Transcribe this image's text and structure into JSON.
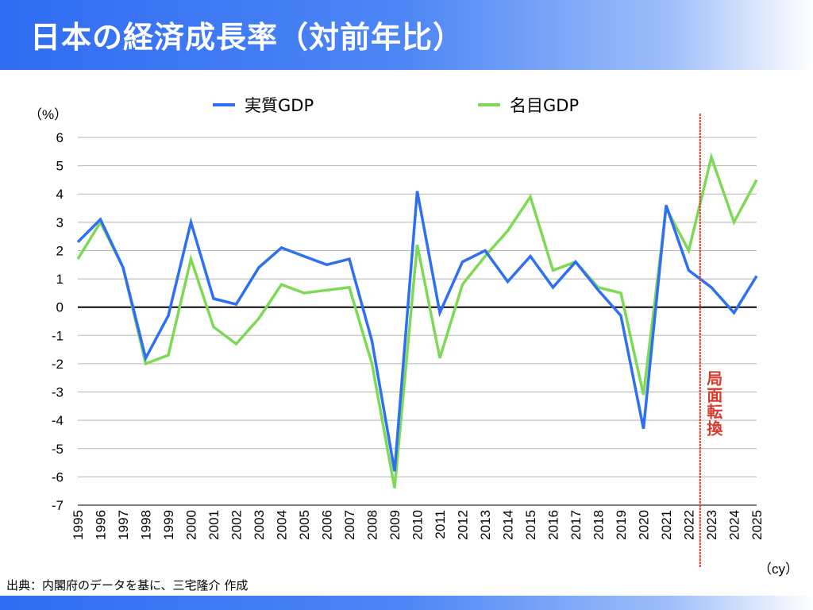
{
  "header": {
    "title": "日本の経済成長率（対前年比）"
  },
  "source": "出典：内閣府のデータを基に、三宅隆介 作成",
  "colors": {
    "real": "#2f6ff2",
    "nominal": "#7ed957",
    "marker": "#d93a2b"
  },
  "chart_data": {
    "type": "line",
    "title": "日本の経済成長率（対前年比）",
    "ylabel": "（%）",
    "xlabel": "（cy）",
    "ylim": [
      -7,
      6
    ],
    "yticks": [
      6,
      5,
      4,
      3,
      2,
      1,
      0,
      -1,
      -2,
      -3,
      -4,
      -5,
      -6,
      -7
    ],
    "grid": true,
    "legend": "top",
    "x": [
      1995,
      1996,
      1997,
      1998,
      1999,
      2000,
      2001,
      2002,
      2003,
      2004,
      2005,
      2006,
      2007,
      2008,
      2009,
      2010,
      2011,
      2012,
      2013,
      2014,
      2015,
      2016,
      2017,
      2018,
      2019,
      2020,
      2021,
      2022,
      2023,
      2024,
      2025
    ],
    "series": [
      {
        "name": "実質GDP",
        "values": [
          2.3,
          3.1,
          1.4,
          -1.8,
          -0.3,
          3.0,
          0.3,
          0.1,
          1.4,
          2.1,
          1.8,
          1.5,
          1.7,
          -1.2,
          -5.8,
          4.1,
          -0.2,
          1.6,
          2.0,
          0.9,
          1.8,
          0.7,
          1.6,
          0.6,
          -0.3,
          -4.3,
          3.6,
          1.3,
          0.7,
          -0.2,
          1.1
        ]
      },
      {
        "name": "名目GDP",
        "values": [
          1.7,
          3.0,
          1.4,
          -2.0,
          -1.7,
          1.7,
          -0.7,
          -1.3,
          -0.4,
          0.8,
          0.5,
          0.6,
          0.7,
          -2.0,
          -6.4,
          2.2,
          -1.8,
          0.8,
          1.8,
          2.7,
          3.9,
          1.3,
          1.6,
          0.7,
          0.5,
          -3.1,
          3.5,
          2.0,
          5.3,
          3.0,
          4.5
        ]
      }
    ],
    "annotation": {
      "text": "局面転換",
      "x": 2022.5
    }
  }
}
